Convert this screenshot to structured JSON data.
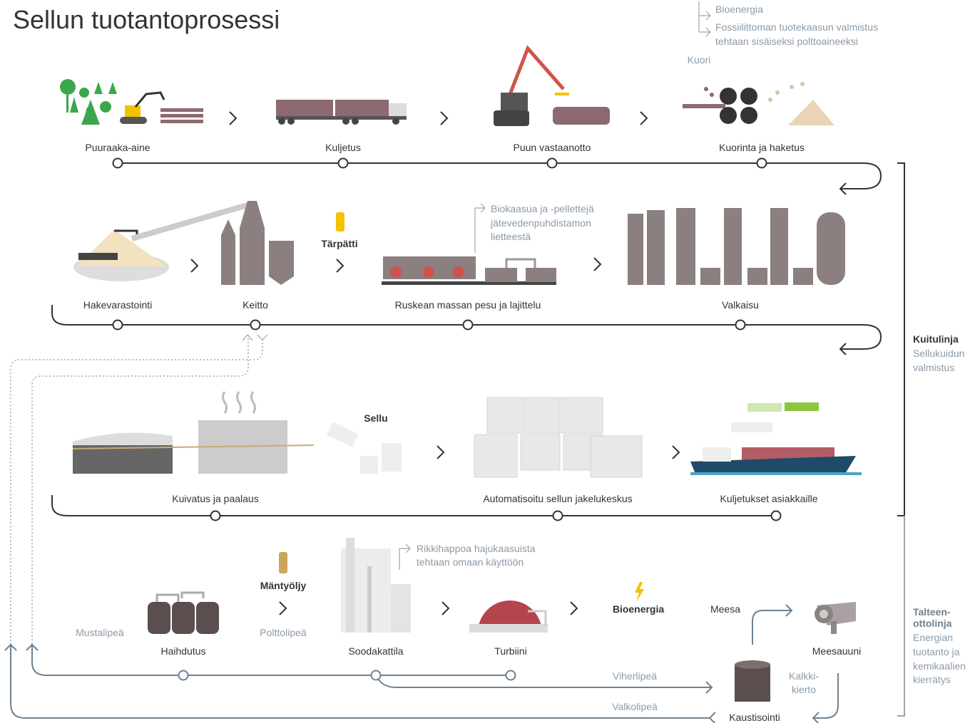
{
  "title": "Sellun tuotantoprosessi",
  "fiber_line": {
    "row1": [
      "Puuraaka-aine",
      "Kuljetus",
      "Puun vastaanotto",
      "Kuorinta ja haketus"
    ],
    "bark_note": {
      "source": "Kuori",
      "uses": [
        "Bioenergia",
        "Fossiilittoman tuotekaasun valmistus",
        "tehtaan sisäiseksi polttoaineeksi"
      ]
    },
    "row2": [
      "Hakevarastointi",
      "Keitto",
      "Ruskean massan pesu ja lajittelu",
      "Valkaisu"
    ],
    "turpentine": "Tärpätti",
    "biogas_note": [
      "Biokaasua ja -pellettejä",
      "jätevedenpuhdistamon",
      "lietteestä"
    ],
    "row3": [
      "Kuivatus ja paalaus",
      "Automatisoitu sellun jakelukeskus",
      "Kuljetukset asiakkaille"
    ],
    "pulp": "Sellu"
  },
  "recovery_line": {
    "stages": [
      "Haihdutus",
      "Soodakattila",
      "Turbiini",
      "Meesauuni",
      "Kaustisointi"
    ],
    "black_liquor": "Mustalipeä",
    "tall_oil": "Mäntyöljy",
    "fuel_liquor": "Polttolipeä",
    "sulfuric_note": [
      "Rikkihappoa hajukaasuista",
      "tehtaan omaan käyttöön"
    ],
    "bioenergy": "Bioenergia",
    "lime_mud": "Meesa",
    "lime_cycle": [
      "Kalkki-",
      "kierto"
    ],
    "green_liquor": "Viherlipeä",
    "white_liquor": "Valkolipeä"
  },
  "legend": {
    "fiber": {
      "title": "Kuitulinja",
      "text": [
        "Sellukuidun",
        "valmistus"
      ]
    },
    "recovery": {
      "title": [
        "Talteen-",
        "ottolinja"
      ],
      "text": [
        "Energian",
        "tuotanto ja",
        "kemikaalien",
        "kierrätys"
      ]
    }
  }
}
